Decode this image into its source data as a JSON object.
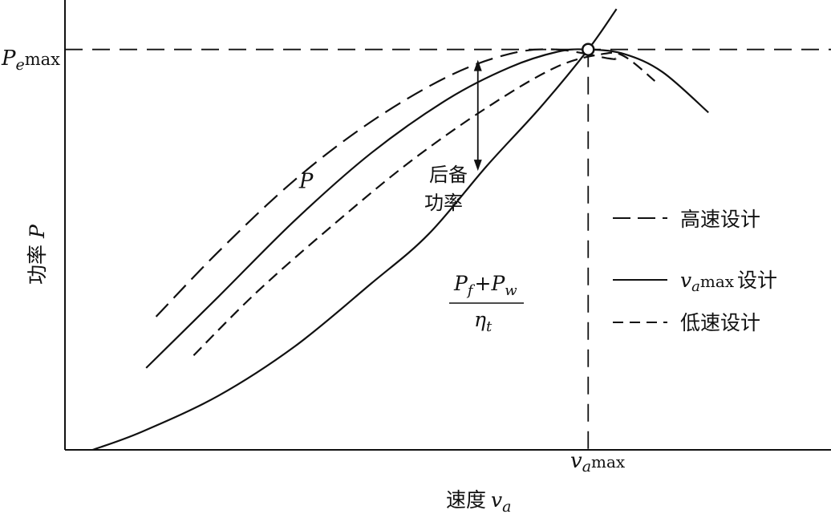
{
  "chart_data": {
    "type": "line",
    "title": "",
    "xlabel": "速度",
    "xlabel_var": "v",
    "xlabel_sub": "a",
    "ylabel": "功率",
    "ylabel_var": "P",
    "x_tick": {
      "var": "v",
      "sub": "a",
      "suffix": "max",
      "x": 0.683
    },
    "y_tick": {
      "var": "P",
      "sub": "e",
      "suffix": "max",
      "y": 0.89
    },
    "xlim": [
      0,
      1
    ],
    "ylim": [
      0,
      1
    ],
    "grid": false,
    "legend_position": "right",
    "colors": {
      "line": "#111111",
      "background": "#ffffff"
    },
    "series": [
      {
        "name": "高速设计",
        "style": "dashed",
        "points": [
          [
            0.119,
            0.296
          ],
          [
            0.2,
            0.44
          ],
          [
            0.3,
            0.6
          ],
          [
            0.4,
            0.73
          ],
          [
            0.5,
            0.83
          ],
          [
            0.58,
            0.88
          ],
          [
            0.641,
            0.89
          ],
          [
            0.71,
            0.87
          ],
          [
            0.719,
            0.87
          ]
        ]
      },
      {
        "name": "设计",
        "name_var": "v",
        "name_sub": "a",
        "name_suffix": "max",
        "style": "solid",
        "points": [
          [
            0.106,
            0.182
          ],
          [
            0.2,
            0.34
          ],
          [
            0.3,
            0.51
          ],
          [
            0.4,
            0.66
          ],
          [
            0.5,
            0.78
          ],
          [
            0.58,
            0.85
          ],
          [
            0.643,
            0.885
          ],
          [
            0.683,
            0.89
          ],
          [
            0.73,
            0.88
          ],
          [
            0.78,
            0.84
          ],
          [
            0.84,
            0.75
          ]
        ]
      },
      {
        "name": "低速设计",
        "style": "dashdot",
        "points": [
          [
            0.168,
            0.21
          ],
          [
            0.25,
            0.35
          ],
          [
            0.35,
            0.5
          ],
          [
            0.45,
            0.64
          ],
          [
            0.55,
            0.76
          ],
          [
            0.64,
            0.85
          ],
          [
            0.702,
            0.88
          ],
          [
            0.73,
            0.875
          ],
          [
            0.77,
            0.82
          ]
        ]
      }
    ],
    "resistance_curve": {
      "label_num": {
        "a_var": "P",
        "a_sub": "f",
        "op": "+",
        "b_var": "P",
        "b_sub": "w"
      },
      "label_den": {
        "var": "η",
        "sub": "t"
      },
      "style": "solid",
      "points": [
        [
          0.036,
          0.0
        ],
        [
          0.1,
          0.04
        ],
        [
          0.2,
          0.12
        ],
        [
          0.3,
          0.23
        ],
        [
          0.4,
          0.37
        ],
        [
          0.475,
          0.48
        ],
        [
          0.55,
          0.63
        ],
        [
          0.62,
          0.76
        ],
        [
          0.683,
          0.89
        ],
        [
          0.72,
          0.98
        ]
      ]
    },
    "annotations": [
      {
        "text_line1": "后备",
        "text_line2": "功率",
        "x": 0.539,
        "y_top": 0.867,
        "y_bottom": 0.62
      }
    ],
    "curve_label": {
      "text": "P",
      "x": 0.314,
      "y": 0.6
    },
    "intersection_marker": {
      "x": 0.683,
      "y": 0.89
    }
  }
}
